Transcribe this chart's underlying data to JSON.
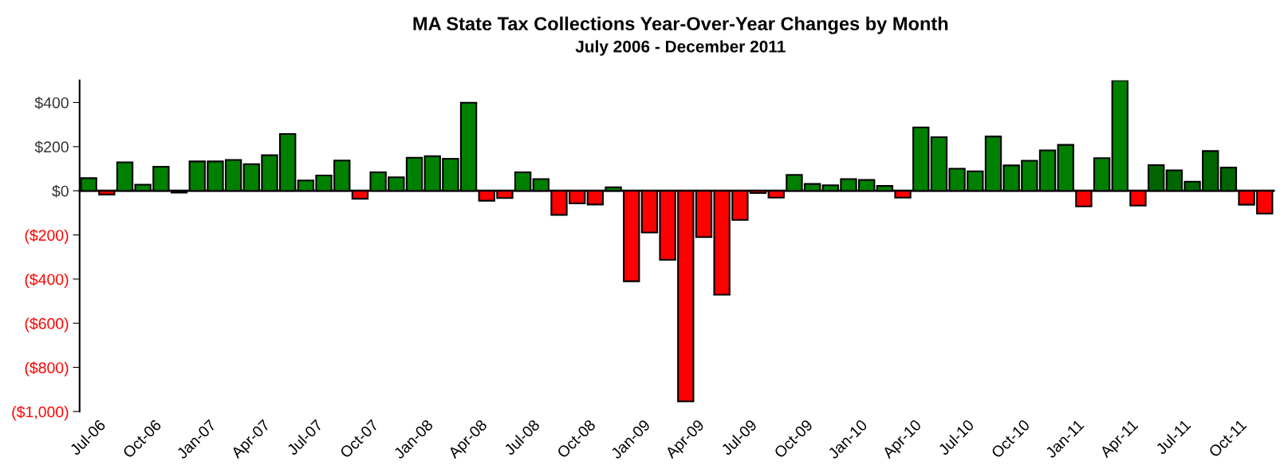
{
  "chart_data": {
    "type": "bar",
    "title": "MA State Tax Collections Year-Over-Year Changes by Month",
    "subtitle": "July 2006 - December 2011",
    "categories": [
      "Jul-06",
      null,
      null,
      "Oct-06",
      null,
      null,
      "Jan-07",
      null,
      null,
      "Apr-07",
      null,
      null,
      "Jul-07",
      null,
      null,
      "Oct-07",
      null,
      null,
      "Jan-08",
      null,
      null,
      "Apr-08",
      null,
      null,
      "Jul-08",
      null,
      null,
      "Oct-08",
      null,
      null,
      "Jan-09",
      null,
      null,
      "Apr-09",
      null,
      null,
      "Jul-09",
      null,
      null,
      "Oct-09",
      null,
      null,
      "Jan-10",
      null,
      null,
      "Apr-10",
      null,
      null,
      "Jul-10",
      null,
      null,
      "Oct-10",
      null,
      null,
      "Jan-11",
      null,
      null,
      "Apr-11",
      null,
      null,
      "Jul-11",
      null,
      null,
      "Oct-11",
      null,
      null
    ],
    "values": [
      57,
      -17,
      129,
      28,
      109,
      -8,
      133,
      133,
      140,
      121,
      161,
      257,
      47,
      69,
      137,
      -36,
      84,
      61,
      150,
      157,
      145,
      399,
      -45,
      -33,
      84,
      53,
      -109,
      -57,
      -62,
      16,
      -410,
      -189,
      -313,
      -954,
      -210,
      -471,
      -132,
      -10,
      -31,
      72,
      31,
      25,
      53,
      49,
      22,
      -31,
      287,
      243,
      100,
      88,
      246,
      115,
      136,
      183,
      208,
      -71,
      148,
      500,
      -67,
      116,
      93,
      41,
      180,
      105,
      -63,
      -103
    ],
    "colors": [
      "#008000",
      "#ff0000",
      "#008000",
      "#008000",
      "#008000",
      "#ff0000",
      "#008000",
      "#008000",
      "#008000",
      "#008000",
      "#008000",
      "#008000",
      "#008000",
      "#008000",
      "#008000",
      "#ff0000",
      "#008000",
      "#008000",
      "#008000",
      "#008000",
      "#008000",
      "#008000",
      "#ff0000",
      "#ff0000",
      "#008000",
      "#008000",
      "#ff0000",
      "#ff0000",
      "#ff0000",
      "#008000",
      "#ff0000",
      "#ff0000",
      "#ff0000",
      "#ff0000",
      "#ff0000",
      "#ff0000",
      "#ff0000",
      "#ff0000",
      "#ff0000",
      "#008000",
      "#008000",
      "#008000",
      "#008000",
      "#008000",
      "#008000",
      "#ff0000",
      "#008000",
      "#008000",
      "#008000",
      "#008000",
      "#008000",
      "#008000",
      "#008000",
      "#008000",
      "#008000",
      "#ff0000",
      "#008000",
      "#008000",
      "#ff0000",
      "#006400",
      "#006400",
      "#006400",
      "#006400",
      "#006400",
      "#ff0000",
      "#ff0000"
    ],
    "ylim": [
      -1000,
      500
    ],
    "yticks": [
      {
        "value": -1000,
        "label": "($1,000)"
      },
      {
        "value": -800,
        "label": "($800)"
      },
      {
        "value": -600,
        "label": "($600)"
      },
      {
        "value": -400,
        "label": "($400)"
      },
      {
        "value": -200,
        "label": "($200)"
      },
      {
        "value": 0,
        "label": "$0"
      },
      {
        "value": 200,
        "label": "$200"
      },
      {
        "value": 400,
        "label": "$400"
      }
    ],
    "legend": false
  }
}
